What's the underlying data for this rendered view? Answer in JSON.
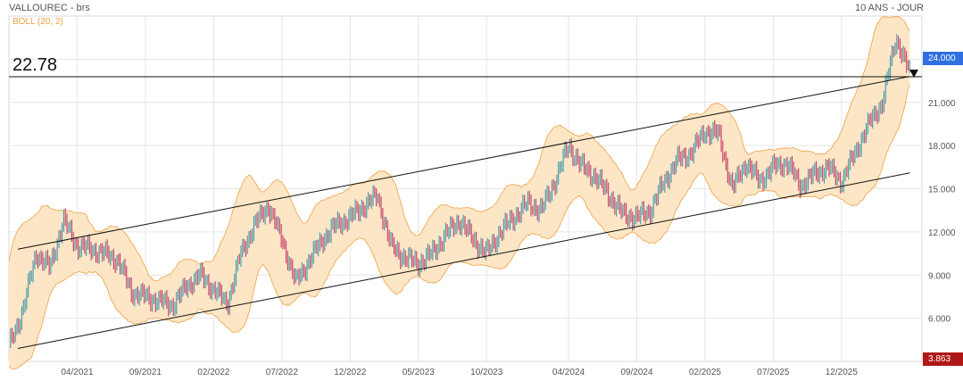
{
  "header": {
    "title": "VALLOUREC - brs",
    "period": "10 ANS - JOUR",
    "indicator": "BOLL (20, 2)"
  },
  "reference_line": {
    "value": 22.78,
    "label": "22.78"
  },
  "price_tags": {
    "current": {
      "label": "24.000",
      "color": "#2f6fe0"
    },
    "low": {
      "label": "3.863",
      "color": "#b01818"
    }
  },
  "colors": {
    "up": "#2a8fa8",
    "down": "#c0285a",
    "band_fill": "#fde6c6",
    "band_line": "#f0a040",
    "grid": "#e6e6e6",
    "trendline": "#111111"
  },
  "chart_data": {
    "type": "line",
    "title": "VALLOUREC - brs",
    "period": "10 ANS - JOUR",
    "ylim": [
      3.0,
      27.0
    ],
    "y_ticks": [
      "24.000",
      "21.000",
      "18.000",
      "15.000",
      "12.000",
      "9.000",
      "6.000"
    ],
    "y_tick_values": [
      24,
      21,
      18,
      15,
      12,
      9,
      6
    ],
    "x_ticks": [
      "04/2021",
      "09/2021",
      "02/2022",
      "07/2022",
      "12/2022",
      "05/2023",
      "10/2023",
      "04/2024",
      "09/2024",
      "02/2025",
      "07/2025",
      "12/2025"
    ],
    "x_tick_dates": [
      "2021-04",
      "2021-09",
      "2022-02",
      "2022-07",
      "2022-12",
      "2023-05",
      "2023-10",
      "2024-04",
      "2024-09",
      "2025-02",
      "2025-07",
      "2025-12"
    ],
    "grid": true,
    "series": [
      {
        "name": "VALLOUREC - brs",
        "points": [
          [
            "2020-11",
            4.0
          ],
          [
            "2020-12",
            6.5
          ],
          [
            "2021-01",
            10.5
          ],
          [
            "2021-02",
            9.5
          ],
          [
            "2021-03",
            12.8
          ],
          [
            "2021-04",
            11.0
          ],
          [
            "2021-05",
            10.8
          ],
          [
            "2021-06",
            10.5
          ],
          [
            "2021-07",
            10.0
          ],
          [
            "2021-08",
            7.8
          ],
          [
            "2021-09",
            7.5
          ],
          [
            "2021-10",
            7.2
          ],
          [
            "2021-11",
            6.9
          ],
          [
            "2021-12",
            8.2
          ],
          [
            "2022-01",
            9.0
          ],
          [
            "2022-02",
            8.0
          ],
          [
            "2022-03",
            7.0
          ],
          [
            "2022-04",
            10.5
          ],
          [
            "2022-05",
            12.5
          ],
          [
            "2022-06",
            13.8
          ],
          [
            "2022-07",
            11.5
          ],
          [
            "2022-08",
            8.5
          ],
          [
            "2022-09",
            10.0
          ],
          [
            "2022-10",
            11.5
          ],
          [
            "2022-11",
            12.5
          ],
          [
            "2022-12",
            13.0
          ],
          [
            "2023-01",
            13.8
          ],
          [
            "2023-02",
            14.5
          ],
          [
            "2023-03",
            11.0
          ],
          [
            "2023-04",
            10.2
          ],
          [
            "2023-05",
            9.8
          ],
          [
            "2023-06",
            10.5
          ],
          [
            "2023-07",
            11.8
          ],
          [
            "2023-08",
            12.8
          ],
          [
            "2023-09",
            11.5
          ],
          [
            "2023-10",
            10.5
          ],
          [
            "2023-11",
            12.0
          ],
          [
            "2023-12",
            13.0
          ],
          [
            "2024-01",
            14.0
          ],
          [
            "2024-02",
            13.5
          ],
          [
            "2024-03",
            15.5
          ],
          [
            "2024-04",
            18.0
          ],
          [
            "2024-05",
            16.5
          ],
          [
            "2024-06",
            15.8
          ],
          [
            "2024-07",
            14.5
          ],
          [
            "2024-08",
            13.2
          ],
          [
            "2024-09",
            13.0
          ],
          [
            "2024-10",
            13.5
          ],
          [
            "2024-11",
            15.5
          ],
          [
            "2024-12",
            17.0
          ],
          [
            "2025-01",
            17.5
          ],
          [
            "2025-02",
            19.0
          ],
          [
            "2025-03",
            18.8
          ],
          [
            "2025-04",
            15.0
          ],
          [
            "2025-05",
            16.8
          ],
          [
            "2025-06",
            15.5
          ],
          [
            "2025-07",
            16.5
          ],
          [
            "2025-08",
            16.8
          ],
          [
            "2025-09",
            15.2
          ],
          [
            "2025-10",
            16.0
          ],
          [
            "2025-11",
            16.5
          ],
          [
            "2025-12",
            15.5
          ],
          [
            "2026-01",
            17.5
          ],
          [
            "2026-02",
            19.5
          ],
          [
            "2026-03",
            21.0
          ],
          [
            "2026-04",
            25.5
          ],
          [
            "2026-05",
            23.0
          ]
        ]
      }
    ],
    "annotations": [
      {
        "type": "horizontal_line",
        "value": 22.78,
        "label": "22.78"
      },
      {
        "type": "channel_upper",
        "from": [
          "2020-11",
          10.8
        ],
        "to": [
          "2026-05",
          22.8
        ]
      },
      {
        "type": "channel_lower",
        "from": [
          "2020-11",
          3.9
        ],
        "to": [
          "2026-05",
          16.1
        ]
      }
    ]
  }
}
